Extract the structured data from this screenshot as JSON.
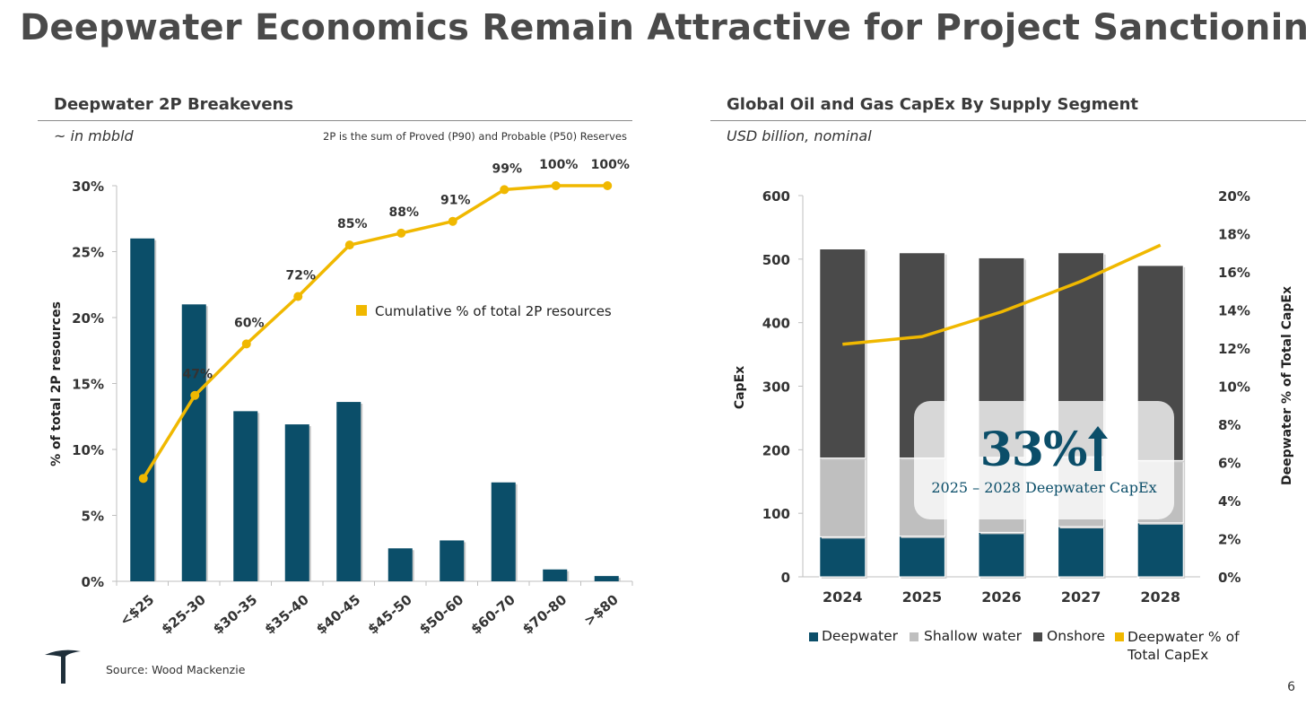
{
  "title": "Deepwater Economics Remain Attractive for Project Sanctioning",
  "left_panel": {
    "title": "Deepwater 2P Breakevens",
    "subtitle": "~ in mbbld",
    "note": "2P is the sum of Proved (P90) and Probable (P50) Reserves"
  },
  "right_panel": {
    "title": "Global Oil and Gas CapEx By Supply Segment",
    "subtitle": "USD billion, nominal",
    "callout_value": "33%",
    "callout_label": "2025 – 2028 Deepwater CapEx"
  },
  "footer": {
    "source": "Source: Wood Mackenzie",
    "page_number": "6"
  },
  "logo": {
    "icon": "company-logo-icon"
  },
  "colors": {
    "navy": "#0b4e69",
    "gold": "#f0b800",
    "light_gray": "#bfbfbf",
    "dark_gray": "#4a4a4a"
  },
  "chart_data": [
    {
      "type": "bar",
      "title": "Deepwater 2P Breakevens",
      "xlabel": "",
      "ylabel": "% of total 2P resources",
      "ylim": [
        0,
        30
      ],
      "y_ticks": [
        "0%",
        "5%",
        "10%",
        "15%",
        "20%",
        "25%",
        "30%"
      ],
      "categories": [
        "<$25",
        "$25-30",
        "$30-35",
        "$35-40",
        "$40-45",
        "$45-50",
        "$50-60",
        "$60-70",
        "$70-80",
        ">$80"
      ],
      "series": [
        {
          "type": "bar",
          "values": [
            26,
            21,
            12.9,
            11.9,
            13.6,
            2.5,
            3.1,
            7.5,
            0.9,
            0.4
          ]
        },
        {
          "type": "line",
          "name": "Cumulative % of total 2P resources",
          "values": [
            26,
            47,
            60,
            72,
            85,
            88,
            91,
            99,
            100,
            100
          ],
          "labels": [
            "",
            "47%",
            "60%",
            "72%",
            "85%",
            "88%",
            "91%",
            "99%",
            "100%",
            "100%"
          ]
        }
      ],
      "legend": "center-right"
    },
    {
      "type": "bar",
      "stacked": true,
      "title": "Global Oil and Gas CapEx By Supply Segment",
      "ylabel": "CapEx",
      "y2label": "Deepwater % of Total CapEx",
      "ylim": [
        0,
        600
      ],
      "y2lim": [
        0,
        20
      ],
      "y_ticks": [
        "0",
        "100",
        "200",
        "300",
        "400",
        "500",
        "600"
      ],
      "y2_ticks": [
        "0%",
        "2%",
        "4%",
        "6%",
        "8%",
        "10%",
        "12%",
        "14%",
        "16%",
        "18%",
        "20%"
      ],
      "categories": [
        "2024",
        "2025",
        "2026",
        "2027",
        "2028"
      ],
      "series": [
        {
          "name": "Deepwater",
          "values": [
            63,
            64,
            70,
            79,
            85
          ]
        },
        {
          "name": "Shallow water",
          "values": [
            124,
            123,
            118,
            110,
            98
          ]
        },
        {
          "name": "Onshore",
          "values": [
            329,
            323,
            314,
            321,
            307
          ]
        },
        {
          "name": "Deepwater % of Total CapEx",
          "type": "line",
          "axis": "right",
          "values": [
            12.2,
            12.6,
            13.9,
            15.5,
            17.4
          ]
        }
      ],
      "legend": "bottom"
    }
  ]
}
